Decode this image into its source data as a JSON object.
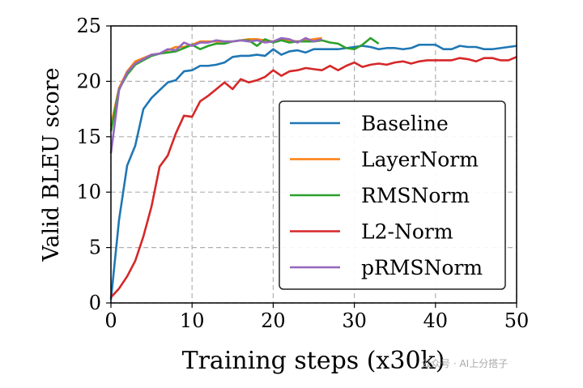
{
  "chart_data": {
    "type": "line",
    "xlabel": "Training steps (x30k)",
    "ylabel": "Valid BLEU score",
    "xlim": [
      0,
      50
    ],
    "ylim": [
      0,
      25
    ],
    "xticks": [
      "0",
      "10",
      "20",
      "30",
      "40",
      "50"
    ],
    "yticks": [
      "0",
      "5",
      "10",
      "15",
      "20",
      "25"
    ],
    "grid": true,
    "legend_placement": "lower-right",
    "series": [
      {
        "name": "Baseline",
        "color": "#1f77b4",
        "x_start": 0,
        "values": [
          0.3,
          7.5,
          12.4,
          14.2,
          17.5,
          18.5,
          19.2,
          19.9,
          20.1,
          20.9,
          21.0,
          21.4,
          21.4,
          21.5,
          21.7,
          22.2,
          22.3,
          22.3,
          22.4,
          22.3,
          22.9,
          22.4,
          22.7,
          22.8,
          22.6,
          22.9,
          22.9,
          22.9,
          22.9,
          23.0,
          23.1,
          23.2,
          23.1,
          22.9,
          23.0,
          23.0,
          22.9,
          23.0,
          23.3,
          23.3,
          23.3,
          22.9,
          22.9,
          23.2,
          23.1,
          23.1,
          22.9,
          22.9,
          23.0,
          23.1,
          23.2
        ]
      },
      {
        "name": "LayerNorm",
        "color": "#ff7f0e",
        "x_start": 0,
        "values": [
          16.0,
          19.4,
          20.9,
          21.8,
          22.1,
          22.4,
          22.5,
          22.8,
          23.1,
          23.1,
          23.3,
          23.6,
          23.6,
          23.6,
          23.6,
          23.6,
          23.7,
          23.8,
          23.8,
          23.7,
          23.6,
          23.8,
          23.7,
          23.6,
          23.7,
          23.8,
          23.9
        ]
      },
      {
        "name": "RMSNorm",
        "color": "#2ca02c",
        "x_start": 0,
        "values": [
          15.5,
          19.3,
          20.6,
          21.5,
          21.9,
          22.3,
          22.5,
          22.6,
          22.7,
          23.0,
          23.3,
          22.9,
          23.2,
          23.4,
          23.4,
          23.6,
          23.7,
          23.7,
          23.2,
          23.8,
          23.5,
          23.7,
          23.5,
          23.6,
          23.6,
          23.6,
          23.7,
          23.5,
          23.4,
          23.0,
          22.9,
          23.3,
          23.9,
          23.4
        ]
      },
      {
        "name": "L2-Norm",
        "color": "#d62728",
        "x_start": 0,
        "values": [
          0.5,
          1.3,
          2.4,
          3.8,
          6.0,
          8.7,
          12.3,
          13.3,
          15.3,
          16.9,
          16.8,
          18.2,
          18.7,
          19.3,
          19.9,
          19.3,
          20.2,
          19.9,
          20.1,
          20.4,
          21.0,
          20.5,
          20.9,
          21.0,
          21.2,
          21.1,
          21.0,
          21.4,
          21.0,
          21.4,
          21.7,
          21.3,
          21.5,
          21.6,
          21.5,
          21.7,
          21.8,
          21.6,
          21.8,
          21.9,
          21.9,
          21.9,
          21.9,
          22.1,
          22.0,
          21.8,
          22.1,
          22.1,
          21.9,
          21.9,
          22.2
        ]
      },
      {
        "name": "pRMSNorm",
        "color": "#9467bd",
        "x_start": 0,
        "values": [
          13.5,
          19.2,
          20.8,
          21.6,
          22.0,
          22.4,
          22.5,
          22.9,
          22.8,
          23.5,
          23.2,
          23.5,
          23.5,
          23.7,
          23.6,
          23.6,
          23.7,
          23.6,
          23.7,
          23.5,
          23.6,
          23.9,
          23.8,
          23.5,
          23.9,
          23.6,
          23.8
        ]
      }
    ]
  },
  "watermark": "公众号 · AI上分搭子"
}
